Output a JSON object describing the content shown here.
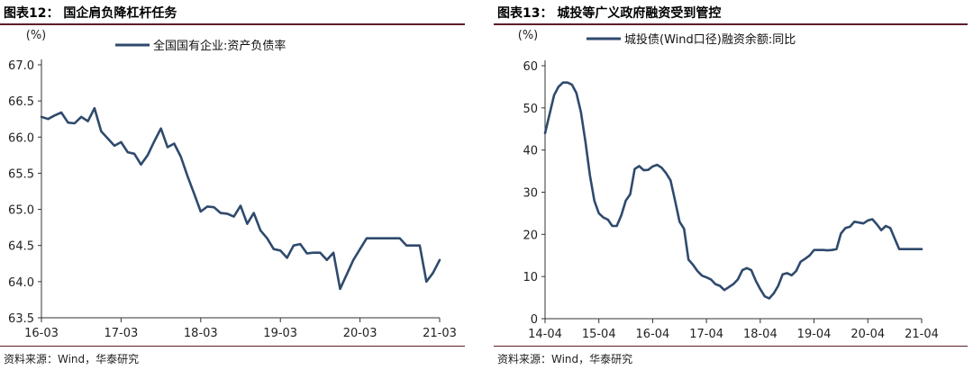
{
  "charts": [
    {
      "title": "图表12：  国企肩负降杠杆任务",
      "source": "资料来源：Wind，华泰研究",
      "chart_data": {
        "type": "line",
        "unit_label": "(%)",
        "ylim": [
          63.5,
          67.0
        ],
        "yticks": [
          63.5,
          64.0,
          64.5,
          65.0,
          65.5,
          66.0,
          66.5,
          67.0
        ],
        "ytick_labels": [
          "63.5",
          "64.0",
          "64.5",
          "65.0",
          "65.5",
          "66.0",
          "66.5",
          "67.0"
        ],
        "xlim": [
          "2016-03",
          "2021-03"
        ],
        "xticks": [
          "2016-03",
          "2017-03",
          "2018-03",
          "2019-03",
          "2020-03",
          "2021-03"
        ],
        "xtick_labels": [
          "16-03",
          "17-03",
          "18-03",
          "19-03",
          "20-03",
          "21-03"
        ],
        "legend_position": "top",
        "color": "#2f4a6d",
        "series": [
          {
            "name": "全国国有企业:资产负债率",
            "x": [
              "2016-03",
              "2016-04",
              "2016-05",
              "2016-06",
              "2016-07",
              "2016-08",
              "2016-09",
              "2016-10",
              "2016-11",
              "2016-12",
              "2017-01",
              "2017-02",
              "2017-03",
              "2017-04",
              "2017-05",
              "2017-06",
              "2017-07",
              "2017-08",
              "2017-09",
              "2017-10",
              "2017-11",
              "2017-12",
              "2018-01",
              "2018-02",
              "2018-03",
              "2018-04",
              "2018-05",
              "2018-06",
              "2018-07",
              "2018-08",
              "2018-09",
              "2018-10",
              "2018-11",
              "2018-12",
              "2019-01",
              "2019-02",
              "2019-03",
              "2019-04",
              "2019-05",
              "2019-06",
              "2019-07",
              "2019-08",
              "2019-09",
              "2019-10",
              "2019-11",
              "2019-12",
              "2020-01",
              "2020-02",
              "2020-03",
              "2020-04",
              "2020-05",
              "2020-06",
              "2020-07",
              "2020-08",
              "2020-09",
              "2020-10",
              "2020-11",
              "2020-12",
              "2021-01",
              "2021-02",
              "2021-03"
            ],
            "y": [
              66.28,
              66.25,
              66.3,
              66.34,
              66.2,
              66.19,
              66.28,
              66.22,
              66.4,
              66.08,
              65.98,
              65.88,
              65.93,
              65.79,
              65.77,
              65.62,
              65.75,
              65.94,
              66.12,
              65.86,
              65.91,
              65.73,
              65.46,
              65.22,
              64.97,
              65.04,
              65.03,
              64.95,
              64.94,
              64.9,
              65.05,
              64.8,
              64.95,
              64.71,
              64.6,
              64.45,
              64.43,
              64.33,
              64.5,
              64.52,
              64.39,
              64.4,
              64.4,
              64.3,
              64.4,
              63.9,
              64.1,
              64.3,
              64.45,
              64.6,
              64.6,
              64.6,
              64.6,
              64.6,
              64.6,
              64.5,
              64.5,
              64.5,
              64.0,
              64.12,
              64.3
            ]
          }
        ]
      }
    },
    {
      "title": "图表13：  城投等广义政府融资受到管控",
      "source": "资料来源：Wind，华泰研究",
      "chart_data": {
        "type": "line",
        "unit_label": "(%)",
        "ylim": [
          0,
          60
        ],
        "yticks": [
          0,
          10,
          20,
          30,
          40,
          50,
          60
        ],
        "ytick_labels": [
          "0",
          "10",
          "20",
          "30",
          "40",
          "50",
          "60"
        ],
        "xlim": [
          "2014-04",
          "2021-04"
        ],
        "xticks": [
          "2014-04",
          "2015-04",
          "2016-04",
          "2017-04",
          "2018-04",
          "2019-04",
          "2020-04",
          "2021-04"
        ],
        "xtick_labels": [
          "14-04",
          "15-04",
          "16-04",
          "17-04",
          "18-04",
          "19-04",
          "20-04",
          "21-04"
        ],
        "legend_position": "top",
        "color": "#2f4a6d",
        "series": [
          {
            "name": "城投债(Wind口径)融资余额:同比",
            "x": [
              "2014-04",
              "2014-05",
              "2014-06",
              "2014-07",
              "2014-08",
              "2014-09",
              "2014-10",
              "2014-11",
              "2014-12",
              "2015-01",
              "2015-02",
              "2015-03",
              "2015-04",
              "2015-05",
              "2015-06",
              "2015-07",
              "2015-08",
              "2015-09",
              "2015-10",
              "2015-11",
              "2015-12",
              "2016-01",
              "2016-02",
              "2016-03",
              "2016-04",
              "2016-05",
              "2016-06",
              "2016-07",
              "2016-08",
              "2016-09",
              "2016-10",
              "2016-11",
              "2016-12",
              "2017-01",
              "2017-02",
              "2017-03",
              "2017-04",
              "2017-05",
              "2017-06",
              "2017-07",
              "2017-08",
              "2017-09",
              "2017-10",
              "2017-11",
              "2017-12",
              "2018-01",
              "2018-02",
              "2018-03",
              "2018-04",
              "2018-05",
              "2018-06",
              "2018-07",
              "2018-08",
              "2018-09",
              "2018-10",
              "2018-11",
              "2018-12",
              "2019-01",
              "2019-02",
              "2019-03",
              "2019-04",
              "2019-05",
              "2019-06",
              "2019-07",
              "2019-08",
              "2019-09",
              "2019-10",
              "2019-11",
              "2019-12",
              "2020-01",
              "2020-02",
              "2020-03",
              "2020-04",
              "2020-05",
              "2020-06",
              "2020-07",
              "2020-08",
              "2020-09",
              "2020-10",
              "2020-11",
              "2020-12",
              "2021-01",
              "2021-02",
              "2021-03",
              "2021-04"
            ],
            "y": [
              44,
              48.5,
              53,
              55,
              56,
              56,
              55.5,
              53.5,
              49,
              42,
              34,
              28,
              25,
              24,
              23.5,
              22,
              22,
              24.5,
              28,
              29.5,
              35.5,
              36.2,
              35.2,
              35.3,
              36.1,
              36.5,
              35.8,
              34.5,
              32.8,
              28,
              23,
              21.3,
              14,
              12.8,
              11.3,
              10.2,
              9.8,
              9.3,
              8.2,
              7.8,
              6.8,
              7.5,
              8.2,
              9.3,
              11.5,
              12,
              11.5,
              9,
              7,
              5.3,
              4.8,
              6,
              7.8,
              10.5,
              10.8,
              10.3,
              11.3,
              13.5,
              14.2,
              15,
              16.3,
              16.3,
              16.3,
              16.2,
              16.3,
              16.5,
              20.2,
              21.5,
              21.8,
              23,
              22.8,
              22.6,
              23.3,
              23.6,
              22.4,
              21,
              22,
              21.5,
              19,
              16.5,
              16.5,
              16.5,
              16.5,
              16.5,
              16.5
            ]
          }
        ]
      }
    }
  ]
}
